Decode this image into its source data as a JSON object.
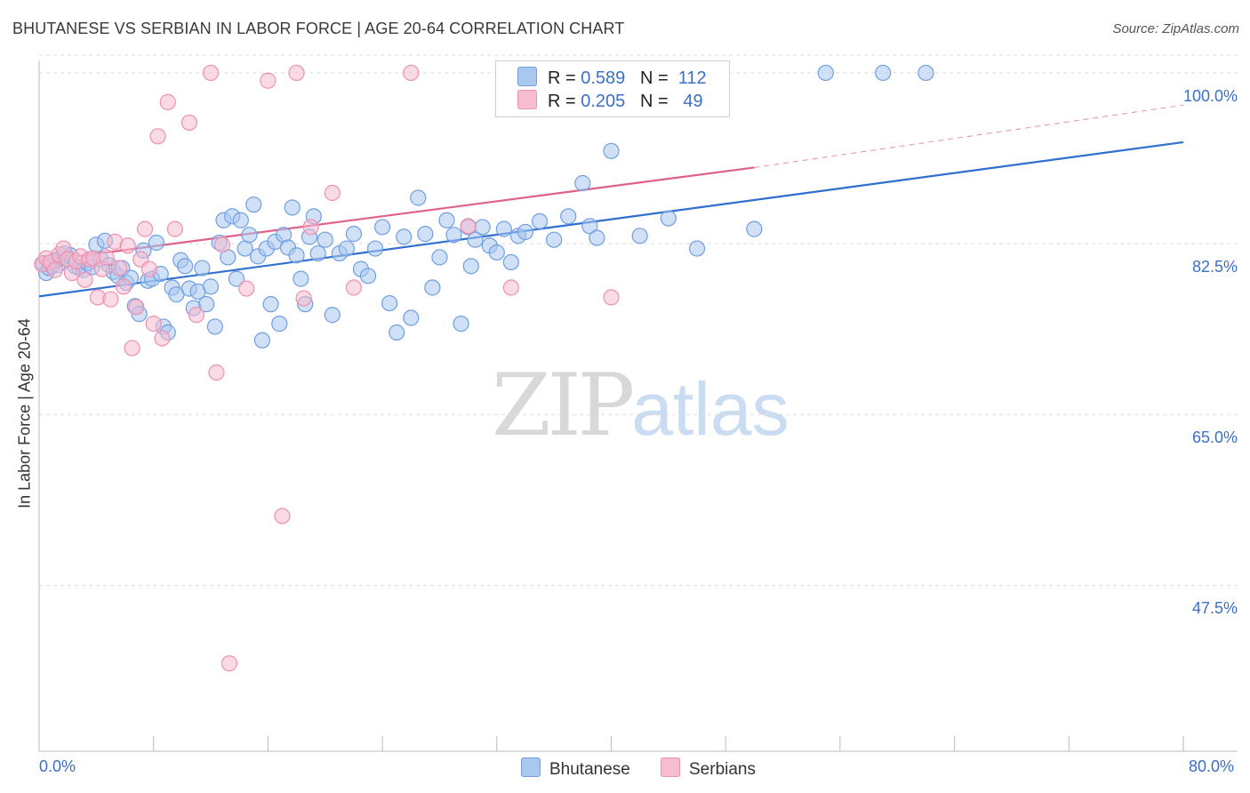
{
  "title": "BHUTANESE VS SERBIAN IN LABOR FORCE | AGE 20-64 CORRELATION CHART",
  "source": "Source: ZipAtlas.com",
  "watermark": {
    "part1": "ZIP",
    "part2": "atlas"
  },
  "legend": {
    "rows": [
      {
        "r_label": "R = ",
        "r_value": "0.589",
        "n_label": "N = ",
        "n_value": "112"
      },
      {
        "r_label": "R = ",
        "r_value": "0.205",
        "n_label": "N = ",
        "n_value": "49"
      }
    ]
  },
  "bottom_legend": {
    "series1": "Bhutanese",
    "series2": "Serbians"
  },
  "colors": {
    "blue_fill": "#a9c8f0",
    "blue_stroke": "#6f9fe0",
    "blue_line": "#2f6fd0",
    "pink_fill": "#f6bcd0",
    "pink_stroke": "#ee90b0",
    "pink_line": "#e0608a",
    "tick_text": "#3b6fc8",
    "grid": "#dddddd"
  },
  "chart_data": {
    "type": "scatter",
    "title": "BHUTANESE VS SERBIAN IN LABOR FORCE | AGE 20-64 CORRELATION CHART",
    "xlabel": "",
    "ylabel": "In Labor Force | Age 20-64",
    "x_tick_labels": [
      "0.0%",
      "80.0%"
    ],
    "y_tick_labels": [
      "100.0%",
      "82.5%",
      "65.0%",
      "47.5%"
    ],
    "yticks": [
      100.0,
      82.5,
      65.0,
      47.5
    ],
    "xlim": [
      0,
      80
    ],
    "ylim": [
      30.5,
      102.0
    ],
    "grid": true,
    "legend_position": "top-center",
    "series": [
      {
        "name": "Bhutanese",
        "R": 0.589,
        "N": 112,
        "trend": {
          "x": [
            0,
            80
          ],
          "y": [
            77.1,
            92.9
          ],
          "style": "solid"
        },
        "points": [
          [
            0.3,
            80.5
          ],
          [
            0.5,
            79.5
          ],
          [
            0.7,
            80.0
          ],
          [
            0.9,
            80.2
          ],
          [
            1.1,
            80.8
          ],
          [
            1.3,
            80.3
          ],
          [
            1.5,
            81.0
          ],
          [
            1.8,
            81.5
          ],
          [
            2.0,
            80.9
          ],
          [
            2.2,
            81.3
          ],
          [
            2.5,
            80.2
          ],
          [
            2.8,
            80.0
          ],
          [
            3.1,
            79.8
          ],
          [
            3.4,
            80.5
          ],
          [
            3.7,
            80.1
          ],
          [
            4.0,
            82.4
          ],
          [
            4.3,
            80.9
          ],
          [
            4.6,
            82.8
          ],
          [
            4.9,
            80.3
          ],
          [
            5.2,
            79.6
          ],
          [
            5.5,
            79.2
          ],
          [
            5.8,
            80.0
          ],
          [
            6.1,
            78.5
          ],
          [
            6.4,
            79.0
          ],
          [
            6.7,
            76.1
          ],
          [
            7.0,
            75.3
          ],
          [
            7.3,
            81.8
          ],
          [
            7.6,
            78.7
          ],
          [
            7.9,
            78.9
          ],
          [
            8.2,
            82.6
          ],
          [
            8.5,
            79.4
          ],
          [
            8.7,
            74.0
          ],
          [
            9.0,
            73.4
          ],
          [
            9.3,
            78.0
          ],
          [
            9.6,
            77.3
          ],
          [
            9.9,
            80.8
          ],
          [
            10.2,
            80.2
          ],
          [
            10.5,
            77.9
          ],
          [
            10.8,
            75.9
          ],
          [
            11.1,
            77.6
          ],
          [
            11.4,
            80.0
          ],
          [
            11.7,
            76.3
          ],
          [
            12.0,
            78.1
          ],
          [
            12.3,
            74.0
          ],
          [
            12.6,
            82.6
          ],
          [
            12.9,
            84.9
          ],
          [
            13.2,
            81.1
          ],
          [
            13.5,
            85.3
          ],
          [
            13.8,
            78.9
          ],
          [
            14.1,
            84.9
          ],
          [
            14.4,
            82.0
          ],
          [
            14.7,
            83.4
          ],
          [
            15.0,
            86.5
          ],
          [
            15.3,
            81.2
          ],
          [
            15.6,
            72.6
          ],
          [
            15.9,
            82.0
          ],
          [
            16.2,
            76.3
          ],
          [
            16.5,
            82.7
          ],
          [
            16.8,
            74.3
          ],
          [
            17.1,
            83.4
          ],
          [
            17.4,
            82.1
          ],
          [
            17.7,
            86.2
          ],
          [
            18.0,
            81.3
          ],
          [
            18.3,
            78.9
          ],
          [
            18.6,
            76.3
          ],
          [
            18.9,
            83.2
          ],
          [
            19.2,
            85.3
          ],
          [
            19.5,
            81.5
          ],
          [
            20.0,
            82.9
          ],
          [
            20.5,
            75.2
          ],
          [
            21.0,
            81.5
          ],
          [
            21.5,
            82.0
          ],
          [
            22.0,
            83.5
          ],
          [
            22.5,
            79.9
          ],
          [
            23.0,
            79.2
          ],
          [
            23.5,
            82.0
          ],
          [
            24.0,
            84.2
          ],
          [
            24.5,
            76.4
          ],
          [
            25.0,
            73.4
          ],
          [
            25.5,
            83.2
          ],
          [
            26.0,
            74.9
          ],
          [
            26.5,
            87.2
          ],
          [
            27.0,
            83.5
          ],
          [
            27.5,
            78.0
          ],
          [
            28.0,
            81.1
          ],
          [
            28.5,
            84.9
          ],
          [
            29.0,
            83.4
          ],
          [
            29.5,
            74.3
          ],
          [
            30.0,
            84.2
          ],
          [
            30.5,
            82.9
          ],
          [
            31.0,
            84.2
          ],
          [
            31.5,
            82.3
          ],
          [
            32.0,
            81.6
          ],
          [
            32.5,
            84.0
          ],
          [
            33.0,
            80.6
          ],
          [
            33.5,
            83.3
          ],
          [
            34.0,
            83.7
          ],
          [
            35.0,
            84.8
          ],
          [
            36.0,
            82.9
          ],
          [
            37.0,
            85.3
          ],
          [
            38.0,
            88.7
          ],
          [
            40.0,
            92.0
          ],
          [
            42.0,
            83.3
          ],
          [
            44.0,
            85.1
          ],
          [
            46.0,
            82.0
          ],
          [
            50.0,
            84.0
          ],
          [
            55.0,
            100.0
          ],
          [
            59.0,
            100.0
          ],
          [
            62.0,
            100.0
          ],
          [
            38.5,
            84.3
          ],
          [
            39.0,
            83.1
          ],
          [
            30.2,
            80.2
          ]
        ]
      },
      {
        "name": "Serbians",
        "R": 0.205,
        "N": 49,
        "trend": {
          "x": [
            0,
            50
          ],
          "y": [
            80.7,
            90.3
          ],
          "style": "solid",
          "extension": {
            "x": [
              50,
              80
            ],
            "y": [
              90.3,
              96.7
            ],
            "style": "dashed"
          }
        },
        "points": [
          [
            0.2,
            80.4
          ],
          [
            0.5,
            81.0
          ],
          [
            0.8,
            80.6
          ],
          [
            1.1,
            79.8
          ],
          [
            1.4,
            81.4
          ],
          [
            1.7,
            82.0
          ],
          [
            2.0,
            80.9
          ],
          [
            2.3,
            79.5
          ],
          [
            2.6,
            80.7
          ],
          [
            2.9,
            81.2
          ],
          [
            3.2,
            78.8
          ],
          [
            3.5,
            80.9
          ],
          [
            3.8,
            81.0
          ],
          [
            4.1,
            77.0
          ],
          [
            4.4,
            79.9
          ],
          [
            4.7,
            81.1
          ],
          [
            5.0,
            76.8
          ],
          [
            5.3,
            82.7
          ],
          [
            5.6,
            80.0
          ],
          [
            5.9,
            78.1
          ],
          [
            6.2,
            82.3
          ],
          [
            6.5,
            71.8
          ],
          [
            6.8,
            76.0
          ],
          [
            7.1,
            80.9
          ],
          [
            7.4,
            84.0
          ],
          [
            7.7,
            79.9
          ],
          [
            8.0,
            74.3
          ],
          [
            8.3,
            93.5
          ],
          [
            8.6,
            72.8
          ],
          [
            9.0,
            97.0
          ],
          [
            9.5,
            84.0
          ],
          [
            10.5,
            94.9
          ],
          [
            11.0,
            75.2
          ],
          [
            12.0,
            100.0
          ],
          [
            12.4,
            69.3
          ],
          [
            12.8,
            82.4
          ],
          [
            13.3,
            39.5
          ],
          [
            14.5,
            77.9
          ],
          [
            16.0,
            99.2
          ],
          [
            17.0,
            54.6
          ],
          [
            18.0,
            100.0
          ],
          [
            18.5,
            76.9
          ],
          [
            19.0,
            84.2
          ],
          [
            20.5,
            87.7
          ],
          [
            22.0,
            78.0
          ],
          [
            26.0,
            100.0
          ],
          [
            30.0,
            84.3
          ],
          [
            33.0,
            78.0
          ],
          [
            40.0,
            77.0
          ]
        ]
      }
    ]
  }
}
